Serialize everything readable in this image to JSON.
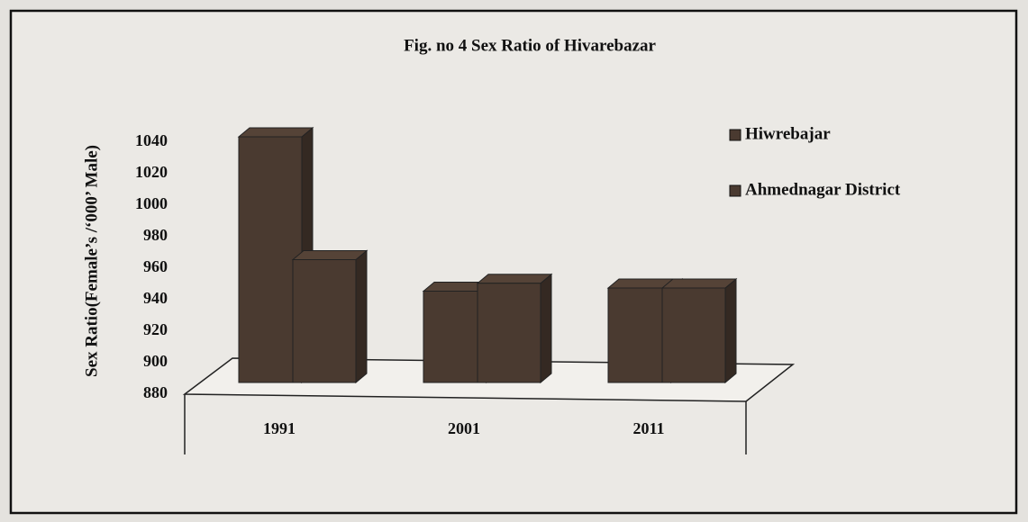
{
  "chart_data": {
    "type": "bar3d",
    "title": "Fig. no 4 Sex Ratio of Hivarebazar",
    "y_label": "Sex Ratio(Female’s /‘000’ Male)",
    "categories": [
      "1991",
      "2001",
      "2011"
    ],
    "series": [
      {
        "name": "Hiwrebajar",
        "color": "#4a3a30",
        "values": [
          1036,
          938,
          940
        ]
      },
      {
        "name": "Ahmednagar District",
        "color": "#4a3a30",
        "values": [
          958,
          943,
          940
        ]
      }
    ],
    "ylim": [
      880,
      1040
    ],
    "yticks": [
      880,
      900,
      920,
      940,
      960,
      980,
      1000,
      1020,
      1040
    ],
    "legend": "right"
  }
}
